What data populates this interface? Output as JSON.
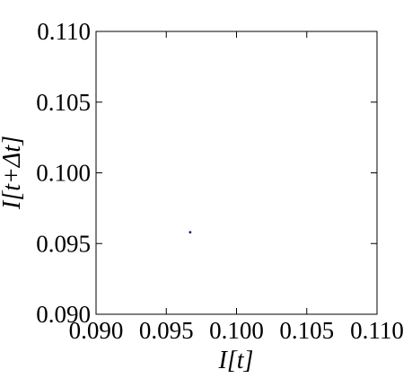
{
  "chart_data": {
    "type": "scatter",
    "xlabel": "I[t]",
    "ylabel": "I[t+Δt]",
    "xlim": [
      0.09,
      0.11
    ],
    "ylim": [
      0.09,
      0.11
    ],
    "x_ticks": [
      "0.090",
      "0.095",
      "0.100",
      "0.105",
      "0.110"
    ],
    "y_ticks": [
      "0.090",
      "0.095",
      "0.100",
      "0.105",
      "0.110"
    ],
    "grid": false,
    "series": [
      {
        "points": [
          {
            "x": 0.0967,
            "y": 0.0958
          }
        ]
      }
    ],
    "colors": {
      "axis": "#000000",
      "point": "#1f1f5a"
    }
  }
}
